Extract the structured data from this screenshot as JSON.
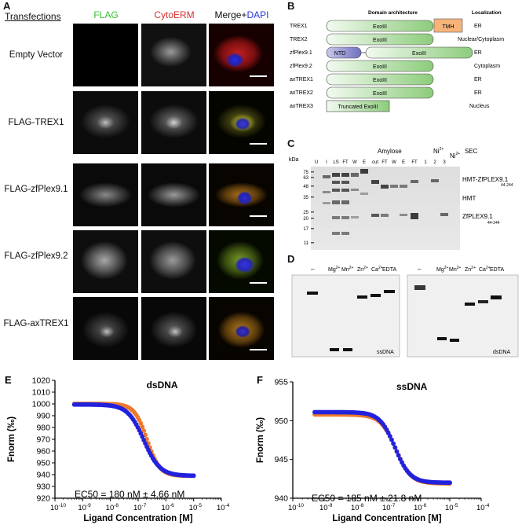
{
  "panelA": {
    "letter": "A",
    "transfections_label": "Transfections",
    "columns": [
      {
        "name": "FLAG",
        "color": "#34c234"
      },
      {
        "name": "CytoERM",
        "color": "#d83030"
      }
    ],
    "merge_label": "Merge+",
    "dapi_label": "DAPI",
    "dapi_color": "#2a3ad8",
    "rows": [
      "Empty Vector",
      "FLAG-TREX1",
      "FLAG-zfPlex9.1",
      "FLAG-zfPlex9.2",
      "FLAG-axTREX1"
    ]
  },
  "panelB": {
    "letter": "B",
    "domain_header": "Domain architecture",
    "localization_header": "Localization",
    "rows": [
      {
        "name": "TREX1",
        "domain": "ExoIII",
        "extra": "TMH",
        "loc": "ER"
      },
      {
        "name": "TREX2",
        "domain": "ExoIII",
        "loc": "Nuclear/Cytoplasm"
      },
      {
        "name": "zfPlex9.1",
        "ntd": "NTD",
        "domain": "ExoIII",
        "loc": "ER"
      },
      {
        "name": "zfPlex9.2",
        "domain": "ExoIII",
        "loc": "Cytoplasm"
      },
      {
        "name": "axTREX1",
        "domain": "ExoIII",
        "loc": "ER"
      },
      {
        "name": "axTREX2",
        "domain": "ExoIII",
        "loc": "ER"
      },
      {
        "name": "axTREX3",
        "domain": "Truncated ExoIII",
        "loc": "Nucleus"
      }
    ]
  },
  "panelC": {
    "letter": "C",
    "kda": "kDa",
    "markers": [
      "75",
      "63",
      "48",
      "35",
      "25",
      "20",
      "17",
      "11"
    ],
    "amylose": "Amylose",
    "ni_label": "Ni",
    "ni_sup": "2+",
    "sec": "SEC",
    "lanes": [
      "U",
      "I",
      "LS",
      "FT",
      "W",
      "E",
      "cut",
      "FT",
      "W",
      "E",
      "FT",
      "1",
      "2",
      "3"
    ],
    "band_labels": {
      "hmt_zf": "HMT-ZfPLEX9.1",
      "hmt_zf_sub": "44-244",
      "hmt": "HMT",
      "zf": "ZfPLEX9.1",
      "zf_sub": "44-244"
    }
  },
  "panelD": {
    "letter": "D",
    "dash": "–",
    "lanes": [
      {
        "ion": "Mg",
        "sup": "2+"
      },
      {
        "ion": "Mn",
        "sup": "2+"
      },
      {
        "ion": "Zn",
        "sup": "2+"
      },
      {
        "ion": "Ca",
        "sup": "2+"
      }
    ],
    "edta": "EDTA",
    "gel1": "ssDNA",
    "gel2": "dsDNA"
  },
  "chart_data": [
    {
      "type": "scatter",
      "letter": "E",
      "title": "dsDNA",
      "xlabel": "Ligand Concentration [M]",
      "ylabel": "Fnorm (‰)",
      "xscale": "log",
      "xlim": [
        1e-10,
        0.0001
      ],
      "ylim": [
        920,
        1020
      ],
      "yticks": [
        "920",
        "930",
        "940",
        "950",
        "960",
        "970",
        "980",
        "990",
        "1000",
        "1010",
        "1020"
      ],
      "xticks": [
        "10",
        "10",
        "10",
        "10",
        "10",
        "10",
        "10"
      ],
      "xtick_exp": [
        "-10",
        "-9",
        "-8",
        "-7",
        "-6",
        "-5",
        "-4"
      ],
      "annotation": "EC50 = 180 nM ± 4.66 nM",
      "series": [
        {
          "color": "#ee7a2a",
          "top": 1000,
          "bottom": 939,
          "ec50": 2.1e-07,
          "hill": 1.9
        },
        {
          "color": "#2222dd",
          "top": 999.5,
          "bottom": 939,
          "ec50": 1.6e-07,
          "hill": 1.5
        }
      ],
      "x_range": [
        5e-10,
        1e-05
      ]
    },
    {
      "type": "scatter",
      "letter": "F",
      "title": "ssDNA",
      "xlabel": "Ligand Concentration [M]",
      "ylabel": "Fnorm (‰)",
      "xscale": "log",
      "xlim": [
        1e-10,
        0.0001
      ],
      "ylim": [
        940,
        955
      ],
      "yticks": [
        "940",
        "945",
        "950",
        "955"
      ],
      "xticks": [
        "10",
        "10",
        "10",
        "10",
        "10",
        "10",
        "10"
      ],
      "xtick_exp": [
        "-10",
        "-9",
        "-8",
        "-7",
        "-6",
        "-5",
        "-4"
      ],
      "annotation": "EC50 = 185 nM ± 21.8 nM",
      "series": [
        {
          "color": "#ee7a2a",
          "top": 950.8,
          "bottom": 941.9,
          "ec50": 1.9e-07,
          "hill": 1.8
        },
        {
          "color": "#2222dd",
          "top": 951.1,
          "bottom": 942.0,
          "ec50": 1.8e-07,
          "hill": 1.8
        }
      ],
      "x_range": [
        5e-10,
        1e-05
      ]
    }
  ]
}
